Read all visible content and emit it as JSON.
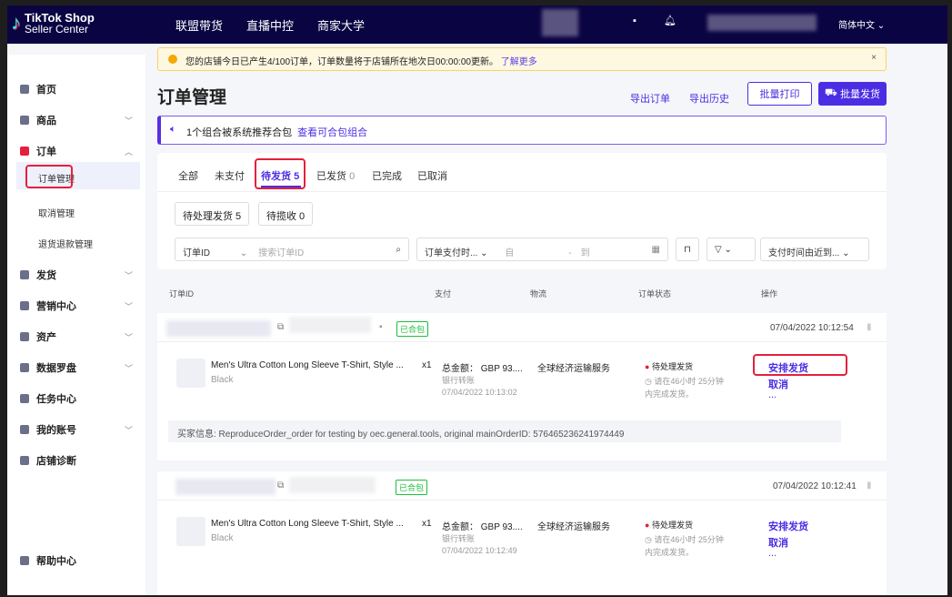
{
  "header": {
    "logo_line1": "TikTok Shop",
    "logo_line2": "Seller Center",
    "nav": [
      "联盟带货",
      "直播中控",
      "商家大学"
    ],
    "language": "简体中文"
  },
  "sidebar": {
    "items": [
      {
        "label": "首页"
      },
      {
        "label": "商品"
      },
      {
        "label": "订单"
      },
      {
        "label": "发货"
      },
      {
        "label": "营销中心"
      },
      {
        "label": "资产"
      },
      {
        "label": "数据罗盘"
      },
      {
        "label": "任务中心"
      },
      {
        "label": "我的账号"
      },
      {
        "label": "店铺诊断"
      },
      {
        "label": "帮助中心"
      }
    ],
    "order_sub": [
      "订单管理",
      "取消管理",
      "退货退款管理"
    ]
  },
  "banner": {
    "text": "您的店铺今日已产生4/100订单，订单数量将于店铺所在地次日00:00:00更新。",
    "link": "了解更多"
  },
  "page": {
    "title": "订单管理",
    "export": "导出订单",
    "export_history": "导出历史",
    "batch_print": "批量打印",
    "batch_ship": "批量发货"
  },
  "tip": {
    "text": "1个组合被系统推荐合包",
    "link": "查看可合包组合"
  },
  "tabs": [
    {
      "label": "全部",
      "count": ""
    },
    {
      "label": "未支付",
      "count": ""
    },
    {
      "label": "待发货",
      "count": "5"
    },
    {
      "label": "已发货",
      "count": "0"
    },
    {
      "label": "已完成",
      "count": ""
    },
    {
      "label": "已取消",
      "count": ""
    }
  ],
  "subtabs": [
    {
      "label": "待处理发货 5"
    },
    {
      "label": "待揽收 0"
    }
  ],
  "filters": {
    "id_select": "订单ID",
    "search_placeholder": "搜索订单ID",
    "time_select": "订单支付时...",
    "from": "自",
    "sep": "-",
    "to": "到",
    "sort": "支付时间由近到..."
  },
  "columns": [
    "订单ID",
    "支付",
    "物流",
    "订单状态",
    "操作"
  ],
  "orders": [
    {
      "tag": "已合包",
      "time": "07/04/2022 10:12:54",
      "product": "Men's Ultra Cotton Long Sleeve T-Shirt, Style ...",
      "variant": "Black",
      "qty": "x1",
      "total": "总金额：  GBP 93....",
      "pay_method": "银行转账",
      "pay_time": "07/04/2022 10:13:02",
      "logistics": "全球经济运输服务",
      "status": "待处理发货",
      "deadline": "请在46小时 25分钟内完成发货。",
      "ship": "安排发货",
      "cancel": "取消",
      "more": "...",
      "buyer": "买家信息: ReproduceOrder_order for testing by oec.general.tools, original mainOrderID: 576465236241974449"
    },
    {
      "tag": "已合包",
      "time": "07/04/2022 10:12:41",
      "product": "Men's Ultra Cotton Long Sleeve T-Shirt, Style ...",
      "variant": "Black",
      "qty": "x1",
      "total": "总金额：  GBP 93....",
      "pay_method": "银行转账",
      "pay_time": "07/04/2022 10:12:49",
      "logistics": "全球经济运输服务",
      "status": "待处理发货",
      "deadline": "请在46小时 25分钟内完成发货。",
      "ship": "安排发货",
      "cancel": "取消",
      "more": "..."
    }
  ],
  "colors": {
    "accent": "#4b2ee3",
    "header": "#0b0443",
    "highlight": "#e5203c",
    "tag": "#1fbe3c"
  }
}
